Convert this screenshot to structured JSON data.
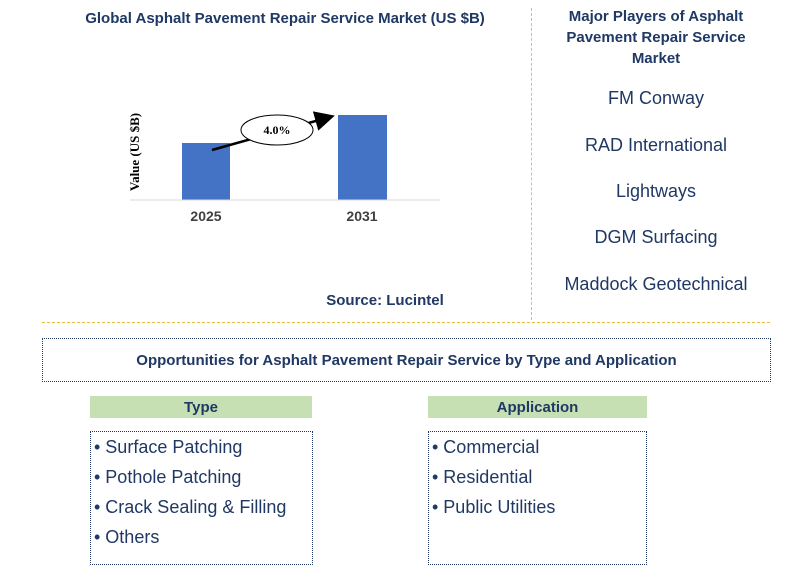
{
  "chart_data": {
    "type": "bar",
    "title": "Global Asphalt Pavement Repair Service Market (US $B)",
    "ylabel": "Value (US $B)",
    "categories": [
      "2025",
      "2031"
    ],
    "annotation": "4.0%",
    "bar_color": "#4472c4"
  },
  "source": "Source: Lucintel",
  "players": {
    "title": "Major Players of Asphalt Pavement Repair Service Market",
    "items": [
      "FM Conway",
      "RAD International",
      "Lightways",
      "DGM Surfacing",
      "Maddock Geotechnical"
    ]
  },
  "opportunities": {
    "title": "Opportunities for Asphalt Pavement Repair Service by Type and Application",
    "type": {
      "header": "Type",
      "items": [
        "• Surface Patching",
        "• Pothole Patching",
        "• Crack Sealing & Filling",
        "• Others"
      ]
    },
    "application": {
      "header": "Application",
      "items": [
        "• Commercial",
        "• Residential",
        "• Public Utilities"
      ]
    }
  },
  "colors": {
    "header_fill": "#c6e0b4",
    "text": "#1f3864",
    "divider": "#e8c040"
  }
}
